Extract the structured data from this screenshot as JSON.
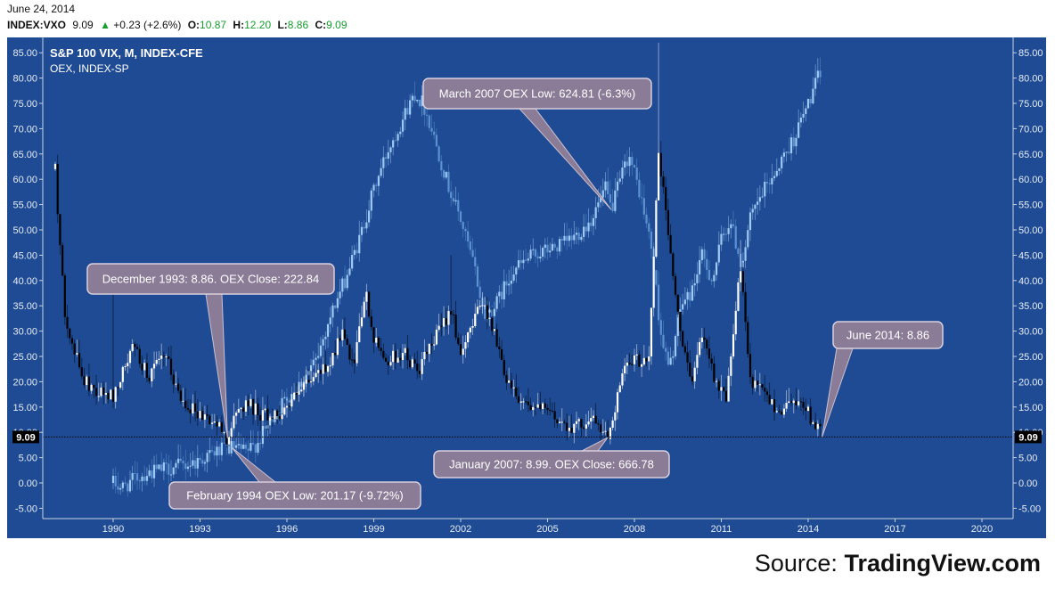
{
  "header": {
    "date": "June 24, 2014",
    "symbol": "INDEX:VXO",
    "last": "9.09",
    "change_arrow": "▲",
    "change": "+0.23 (+2.6%)",
    "open_label": "O:",
    "open": "10.87",
    "high_label": "H:",
    "high": "12.20",
    "low_label": "L:",
    "low": "8.86",
    "close_label": "C:",
    "close": "9.09"
  },
  "source": {
    "prefix": "Source:",
    "name": "TradingView.com"
  },
  "colors": {
    "background": "#1e4b93",
    "axis_text": "#e6ecf5",
    "vix_bull": "#ffffff",
    "vix_bear": "#000000",
    "oex_bull": "#9fcaf6",
    "oex_bear": "#5d92d2",
    "callout": "#8a7b96",
    "quote_up": "#15a02f"
  },
  "chart_data": {
    "type": "candlestick",
    "title": "S&P 100 VIX, M, INDEX-CFE",
    "subtitle": "OEX, INDEX-SP",
    "y_ticks": [
      "85.00",
      "80.00",
      "75.00",
      "70.00",
      "65.00",
      "60.00",
      "55.00",
      "50.00",
      "45.00",
      "40.00",
      "35.00",
      "30.00",
      "25.00",
      "20.00",
      "15.00",
      "10.00",
      "5.00",
      "0.00",
      "-5.00"
    ],
    "x_ticks": [
      "1990",
      "1993",
      "1996",
      "1999",
      "2002",
      "2005",
      "2008",
      "2011",
      "2014",
      "2017",
      "2020"
    ],
    "ylim": [
      -7,
      87.5
    ],
    "xlim": [
      1987.85,
      2021.3
    ],
    "last_value_label": "9.09",
    "last_value": 9.09,
    "grid": false,
    "series": [
      {
        "name": "S&P 100 VIX",
        "keypoints": [
          [
            1988.0,
            62
          ],
          [
            1988.3,
            35
          ],
          [
            1988.6,
            27
          ],
          [
            1989.0,
            20
          ],
          [
            1989.5,
            18
          ],
          [
            1990.0,
            17
          ],
          [
            1990.7,
            27
          ],
          [
            1991.2,
            21
          ],
          [
            1991.8,
            25
          ],
          [
            1992.3,
            17
          ],
          [
            1992.9,
            14
          ],
          [
            1993.5,
            12
          ],
          [
            1993.95,
            8.86
          ],
          [
            1994.3,
            14
          ],
          [
            1994.6,
            16
          ],
          [
            1995.0,
            14
          ],
          [
            1995.5,
            13
          ],
          [
            1996.0,
            15
          ],
          [
            1996.8,
            20
          ],
          [
            1997.5,
            24
          ],
          [
            1997.9,
            30
          ],
          [
            1998.3,
            22
          ],
          [
            1998.7,
            38
          ],
          [
            1999.0,
            28
          ],
          [
            1999.5,
            24
          ],
          [
            2000.0,
            26
          ],
          [
            2000.5,
            22
          ],
          [
            2001.0,
            27
          ],
          [
            2001.7,
            35
          ],
          [
            2002.0,
            24
          ],
          [
            2002.6,
            36
          ],
          [
            2003.0,
            33
          ],
          [
            2003.5,
            22
          ],
          [
            2004.0,
            17
          ],
          [
            2004.5,
            15
          ],
          [
            2005.0,
            14
          ],
          [
            2005.5,
            12
          ],
          [
            2006.0,
            11
          ],
          [
            2006.5,
            13
          ],
          [
            2007.08,
            8.99
          ],
          [
            2007.6,
            22
          ],
          [
            2008.0,
            24
          ],
          [
            2008.5,
            25
          ],
          [
            2008.83,
            65
          ],
          [
            2009.2,
            48
          ],
          [
            2009.6,
            28
          ],
          [
            2010.0,
            21
          ],
          [
            2010.4,
            30
          ],
          [
            2010.8,
            20
          ],
          [
            2011.2,
            17
          ],
          [
            2011.65,
            43
          ],
          [
            2012.0,
            20
          ],
          [
            2012.6,
            17
          ],
          [
            2013.0,
            14
          ],
          [
            2013.5,
            17
          ],
          [
            2014.0,
            14
          ],
          [
            2014.48,
            9.09
          ]
        ]
      },
      {
        "name": "OEX",
        "keypoints": [
          [
            1990.0,
            0
          ],
          [
            1990.3,
            -1
          ],
          [
            1990.8,
            1
          ],
          [
            1991.2,
            2
          ],
          [
            1992.0,
            3
          ],
          [
            1992.8,
            4
          ],
          [
            1993.5,
            6
          ],
          [
            1994.1,
            7
          ],
          [
            1994.6,
            6
          ],
          [
            1995.0,
            8
          ],
          [
            1995.5,
            13
          ],
          [
            1996.0,
            17
          ],
          [
            1996.5,
            20
          ],
          [
            1997.0,
            24
          ],
          [
            1997.5,
            33
          ],
          [
            1998.0,
            40
          ],
          [
            1998.5,
            48
          ],
          [
            1999.0,
            58
          ],
          [
            1999.5,
            66
          ],
          [
            2000.0,
            72
          ],
          [
            2000.4,
            77
          ],
          [
            2000.7,
            75
          ],
          [
            2001.0,
            70
          ],
          [
            2001.5,
            60
          ],
          [
            2002.0,
            52
          ],
          [
            2002.5,
            42
          ],
          [
            2002.8,
            33
          ],
          [
            2003.2,
            35
          ],
          [
            2003.8,
            42
          ],
          [
            2004.5,
            45
          ],
          [
            2005.0,
            46
          ],
          [
            2005.5,
            47
          ],
          [
            2006.0,
            49
          ],
          [
            2006.5,
            52
          ],
          [
            2007.0,
            58
          ],
          [
            2007.2,
            54
          ],
          [
            2007.8,
            65
          ],
          [
            2008.2,
            57
          ],
          [
            2008.6,
            46
          ],
          [
            2008.9,
            30
          ],
          [
            2009.2,
            22
          ],
          [
            2009.6,
            35
          ],
          [
            2010.0,
            38
          ],
          [
            2010.3,
            45
          ],
          [
            2010.7,
            40
          ],
          [
            2011.0,
            48
          ],
          [
            2011.3,
            52
          ],
          [
            2011.7,
            43
          ],
          [
            2012.0,
            52
          ],
          [
            2012.5,
            58
          ],
          [
            2013.0,
            63
          ],
          [
            2013.5,
            68
          ],
          [
            2014.0,
            75
          ],
          [
            2014.48,
            82
          ]
        ]
      }
    ],
    "annotations": [
      {
        "text": "December 1993: 8.86. OEX Close: 222.84",
        "target_x": 1993.95,
        "target_y": 8.86
      },
      {
        "text": "March 2007 OEX Low: 624.81 (-6.3%)",
        "target_x": 2007.2,
        "target_y": 54
      },
      {
        "text": "June 2014: 8.86",
        "target_x": 2014.48,
        "target_y": 9.09
      },
      {
        "text": "January 2007: 8.99. OEX Close: 666.78",
        "target_x": 2007.08,
        "target_y": 8.99
      },
      {
        "text": "February 1994 OEX Low: 201.17 (-9.72%)",
        "target_x": 1994.1,
        "target_y": 7
      }
    ]
  }
}
